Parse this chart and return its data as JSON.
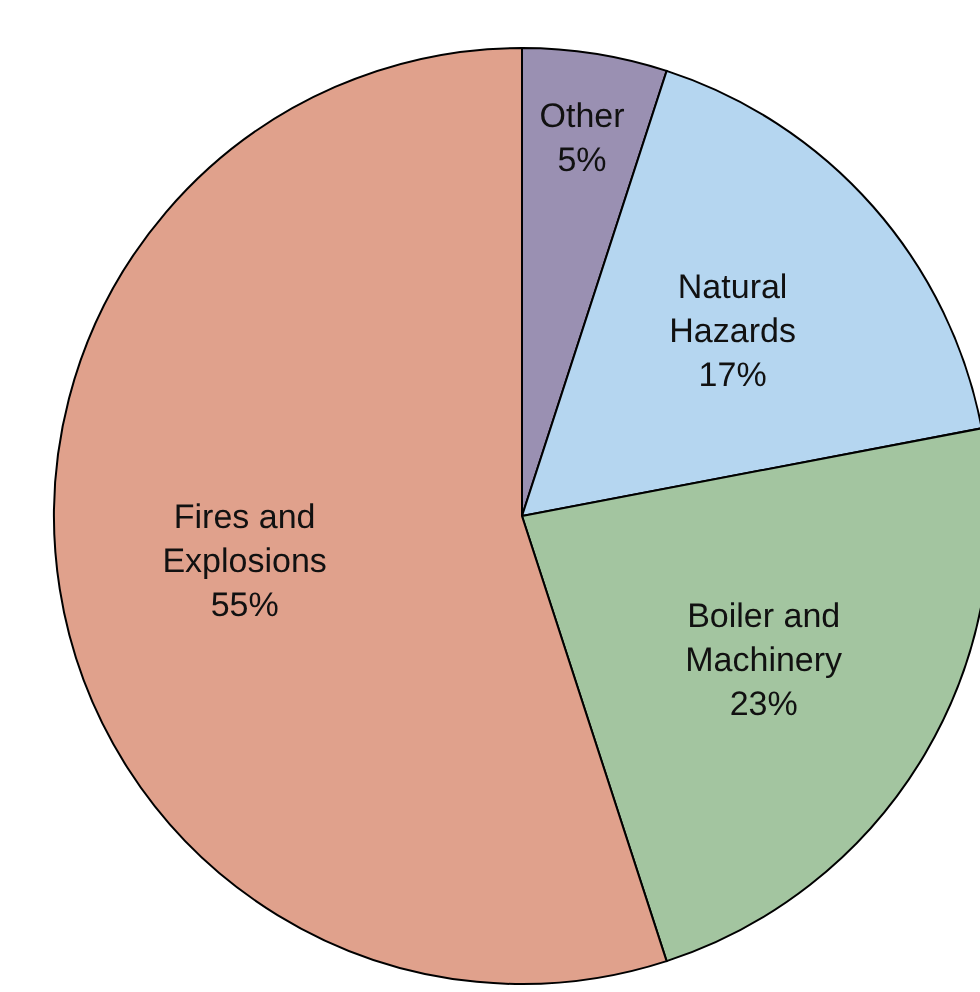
{
  "chart_data": {
    "type": "pie",
    "categories": [
      "Other",
      "Natural Hazards",
      "Boiler and Machinery",
      "Fires and Explosions"
    ],
    "values": [
      5,
      17,
      23,
      55
    ],
    "value_labels": [
      "5%",
      "17%",
      "23%",
      "55%"
    ],
    "colors": [
      "#9a90b2",
      "#b5d6f0",
      "#a3c5a0",
      "#e0a18c"
    ]
  }
}
